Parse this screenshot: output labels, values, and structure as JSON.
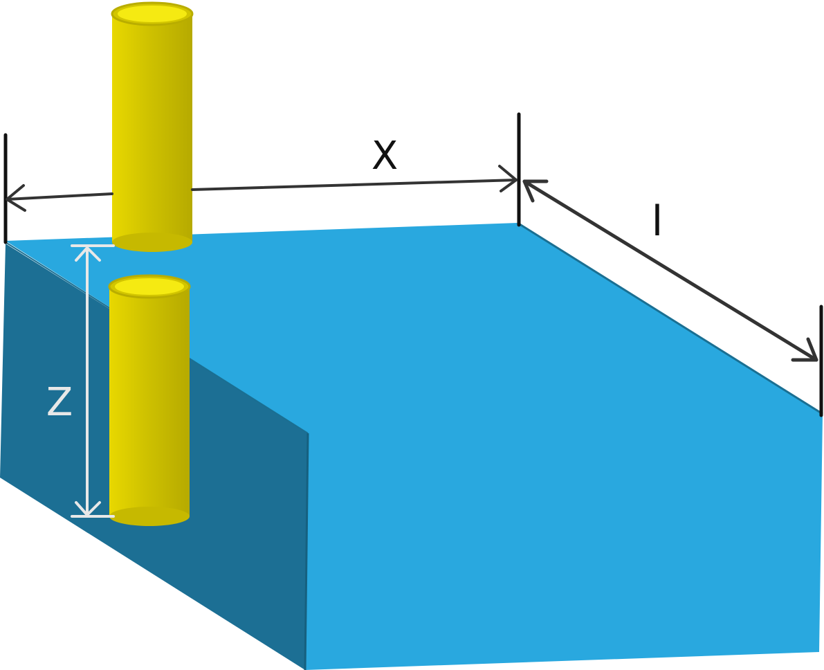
{
  "labels": {
    "width_dimension": "X",
    "length_dimension": "l",
    "depth_dimension": "Z"
  },
  "colors": {
    "block_top": "#29a8df",
    "block_side": "#1c6f94",
    "cylinder_body": "#d6c800",
    "cylinder_top": "#f5ea12",
    "cylinder_rim": "#b9ad00",
    "dimension_dark": "#333333",
    "dimension_light": "#e8e8e8"
  }
}
